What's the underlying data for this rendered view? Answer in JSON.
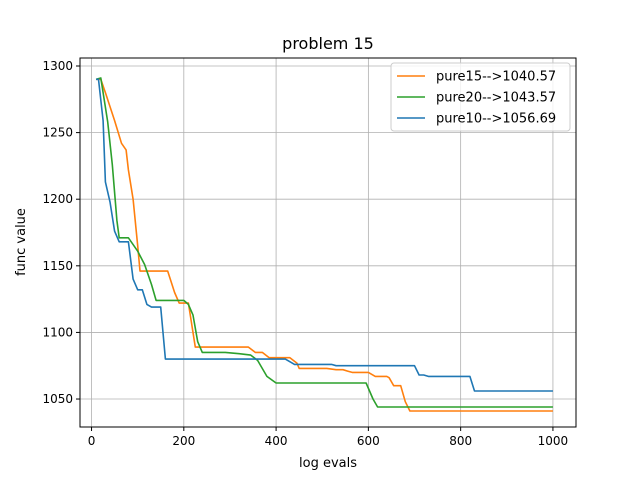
{
  "chart_data": {
    "type": "line",
    "title": "problem 15",
    "xlabel": "log evals",
    "ylabel": "func value",
    "xlim": [
      -25,
      1050
    ],
    "ylim": [
      1029,
      1306
    ],
    "xticks": [
      0,
      200,
      400,
      600,
      800,
      1000
    ],
    "yticks": [
      1050,
      1100,
      1150,
      1200,
      1250,
      1300
    ],
    "grid": true,
    "legend_position": "top-right",
    "series": [
      {
        "name": "pure15-->1040.57",
        "color": "#ff7f0e",
        "points": [
          [
            10,
            1290
          ],
          [
            20,
            1290
          ],
          [
            30,
            1280
          ],
          [
            50,
            1259
          ],
          [
            65,
            1242
          ],
          [
            75,
            1237
          ],
          [
            80,
            1222
          ],
          [
            90,
            1200
          ],
          [
            100,
            1165
          ],
          [
            105,
            1146
          ],
          [
            165,
            1146
          ],
          [
            180,
            1130
          ],
          [
            190,
            1122
          ],
          [
            210,
            1122
          ],
          [
            225,
            1089
          ],
          [
            340,
            1089
          ],
          [
            355,
            1085
          ],
          [
            370,
            1085
          ],
          [
            385,
            1081
          ],
          [
            420,
            1081
          ],
          [
            430,
            1081
          ],
          [
            445,
            1077
          ],
          [
            450,
            1073
          ],
          [
            510,
            1073
          ],
          [
            530,
            1072
          ],
          [
            545,
            1072
          ],
          [
            555,
            1071
          ],
          [
            565,
            1070
          ],
          [
            590,
            1070
          ],
          [
            600,
            1070
          ],
          [
            615,
            1067
          ],
          [
            625,
            1067
          ],
          [
            640,
            1067
          ],
          [
            645,
            1066
          ],
          [
            655,
            1060
          ],
          [
            670,
            1060
          ],
          [
            680,
            1048
          ],
          [
            690,
            1041
          ],
          [
            1000,
            1041
          ]
        ]
      },
      {
        "name": "pure20-->1043.57",
        "color": "#2ca02c",
        "points": [
          [
            10,
            1290
          ],
          [
            20,
            1291
          ],
          [
            35,
            1258
          ],
          [
            45,
            1226
          ],
          [
            55,
            1184
          ],
          [
            60,
            1171
          ],
          [
            80,
            1171
          ],
          [
            100,
            1161
          ],
          [
            115,
            1151
          ],
          [
            130,
            1136
          ],
          [
            140,
            1124
          ],
          [
            200,
            1124
          ],
          [
            210,
            1121
          ],
          [
            220,
            1113
          ],
          [
            230,
            1093
          ],
          [
            240,
            1085
          ],
          [
            290,
            1085
          ],
          [
            320,
            1084
          ],
          [
            345,
            1083
          ],
          [
            360,
            1079
          ],
          [
            380,
            1067
          ],
          [
            400,
            1062
          ],
          [
            595,
            1062
          ],
          [
            610,
            1050
          ],
          [
            620,
            1044
          ],
          [
            1000,
            1044
          ]
        ]
      },
      {
        "name": "pure10-->1056.69",
        "color": "#1f77b4",
        "points": [
          [
            10,
            1290
          ],
          [
            15,
            1290
          ],
          [
            25,
            1259
          ],
          [
            30,
            1213
          ],
          [
            40,
            1198
          ],
          [
            50,
            1176
          ],
          [
            60,
            1168
          ],
          [
            80,
            1168
          ],
          [
            90,
            1140
          ],
          [
            100,
            1132
          ],
          [
            110,
            1132
          ],
          [
            120,
            1121
          ],
          [
            130,
            1119
          ],
          [
            150,
            1119
          ],
          [
            160,
            1080
          ],
          [
            210,
            1080
          ],
          [
            420,
            1080
          ],
          [
            435,
            1077
          ],
          [
            440,
            1076
          ],
          [
            520,
            1076
          ],
          [
            530,
            1075
          ],
          [
            620,
            1075
          ],
          [
            625,
            1075
          ],
          [
            700,
            1075
          ],
          [
            710,
            1068
          ],
          [
            720,
            1068
          ],
          [
            730,
            1067
          ],
          [
            820,
            1067
          ],
          [
            830,
            1056
          ],
          [
            1000,
            1056
          ]
        ]
      }
    ]
  }
}
